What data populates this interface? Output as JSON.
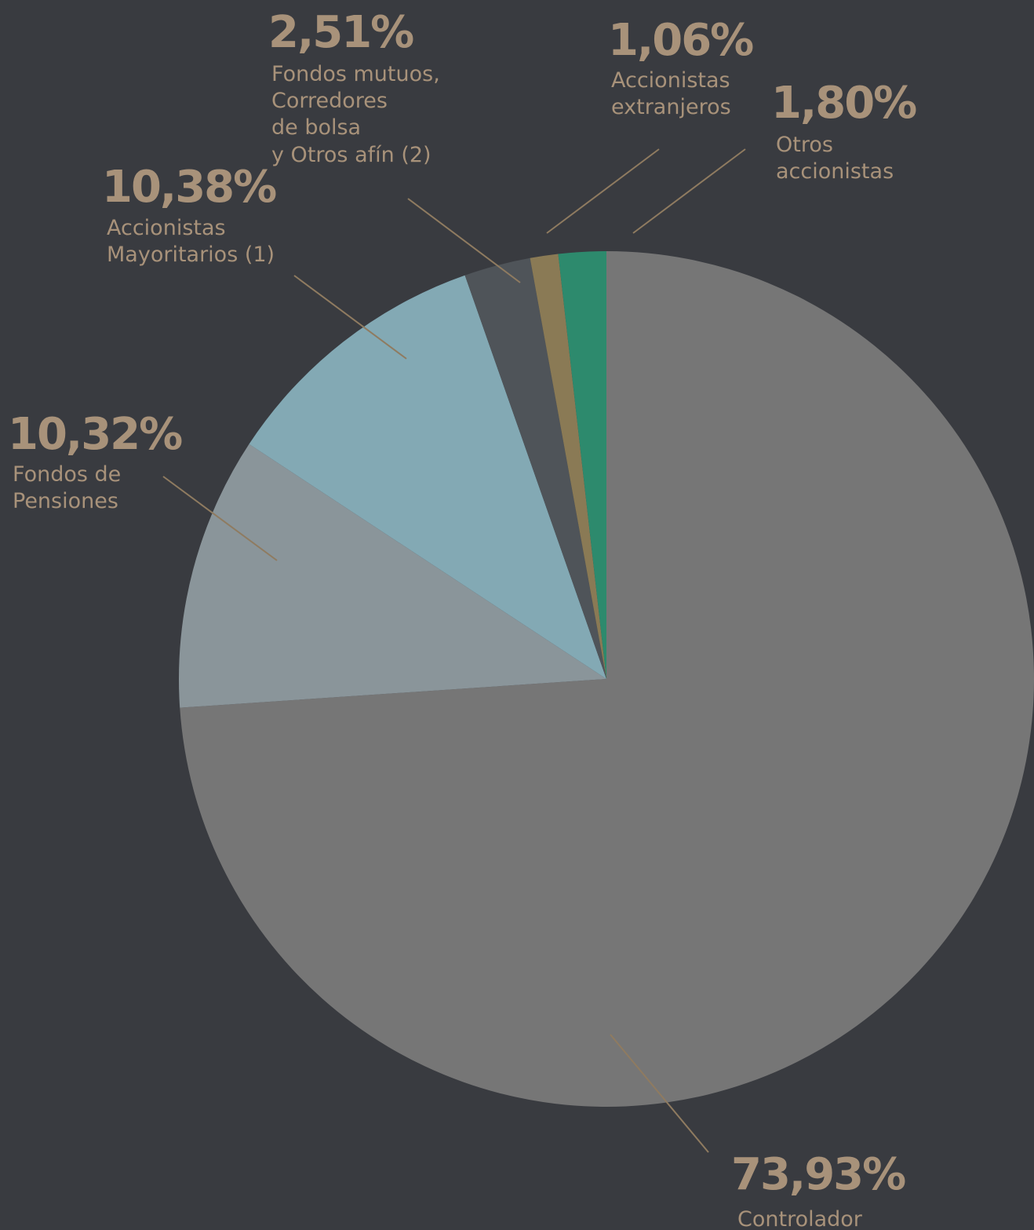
{
  "chart_data": {
    "type": "pie",
    "categories": [
      [
        "Controlador"
      ],
      [
        "Fondos de",
        "Pensiones"
      ],
      [
        "Accionistas",
        "Mayoritarios (1)"
      ],
      [
        "Fondos mutuos,",
        "Corredores",
        "de bolsa",
        "y Otros afín (2)"
      ],
      [
        "Accionistas",
        "extranjeros"
      ],
      [
        "Otros",
        "accionistas"
      ]
    ],
    "values": [
      73.93,
      10.32,
      10.38,
      2.51,
      1.06,
      1.8
    ],
    "value_labels": [
      "73,93%",
      "10,32%",
      "10,38%",
      "2,51%",
      "1,06%",
      "1,80%"
    ],
    "colors": [
      "#767676",
      "#8a959a",
      "#83a9b4",
      "#4f5459",
      "#8a7a55",
      "#2d8a6d"
    ]
  }
}
